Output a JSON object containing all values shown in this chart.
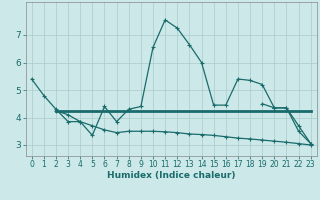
{
  "xlabel": "Humidex (Indice chaleur)",
  "background_color": "#cce8e8",
  "grid_color": "#aacccc",
  "line_color": "#1a6b6b",
  "xlim": [
    -0.5,
    23.5
  ],
  "ylim": [
    2.6,
    8.2
  ],
  "xticks": [
    0,
    1,
    2,
    3,
    4,
    5,
    6,
    7,
    8,
    9,
    10,
    11,
    12,
    13,
    14,
    15,
    16,
    17,
    18,
    19,
    20,
    21,
    22,
    23
  ],
  "yticks": [
    3,
    4,
    5,
    6,
    7
  ],
  "line1_x": [
    0,
    1,
    2,
    3,
    4,
    5,
    6,
    7,
    8,
    9,
    10,
    11,
    12,
    13,
    14,
    15,
    16,
    17,
    18,
    19,
    20,
    21,
    22,
    23
  ],
  "line1_y": [
    5.4,
    4.8,
    4.3,
    3.85,
    3.85,
    3.35,
    4.4,
    3.85,
    4.3,
    4.4,
    6.55,
    7.55,
    7.25,
    6.65,
    6.0,
    4.45,
    4.45,
    5.4,
    5.35,
    5.2,
    4.35,
    4.35,
    3.7,
    3.05
  ],
  "line2_x": [
    2,
    23
  ],
  "line2_y": [
    4.25,
    4.25
  ],
  "line3_x": [
    2,
    3,
    4,
    5,
    6,
    7,
    8,
    9,
    10,
    11,
    12,
    13,
    14,
    15,
    16,
    17,
    18,
    19,
    20,
    21,
    22,
    23
  ],
  "line3_y": [
    4.25,
    4.1,
    3.85,
    3.7,
    3.55,
    3.45,
    3.5,
    3.5,
    3.5,
    3.48,
    3.45,
    3.4,
    3.38,
    3.35,
    3.3,
    3.25,
    3.22,
    3.18,
    3.14,
    3.1,
    3.05,
    3.0
  ],
  "line4_x": [
    19,
    20,
    21,
    22,
    23
  ],
  "line4_y": [
    4.5,
    4.35,
    4.35,
    3.5,
    3.05
  ]
}
